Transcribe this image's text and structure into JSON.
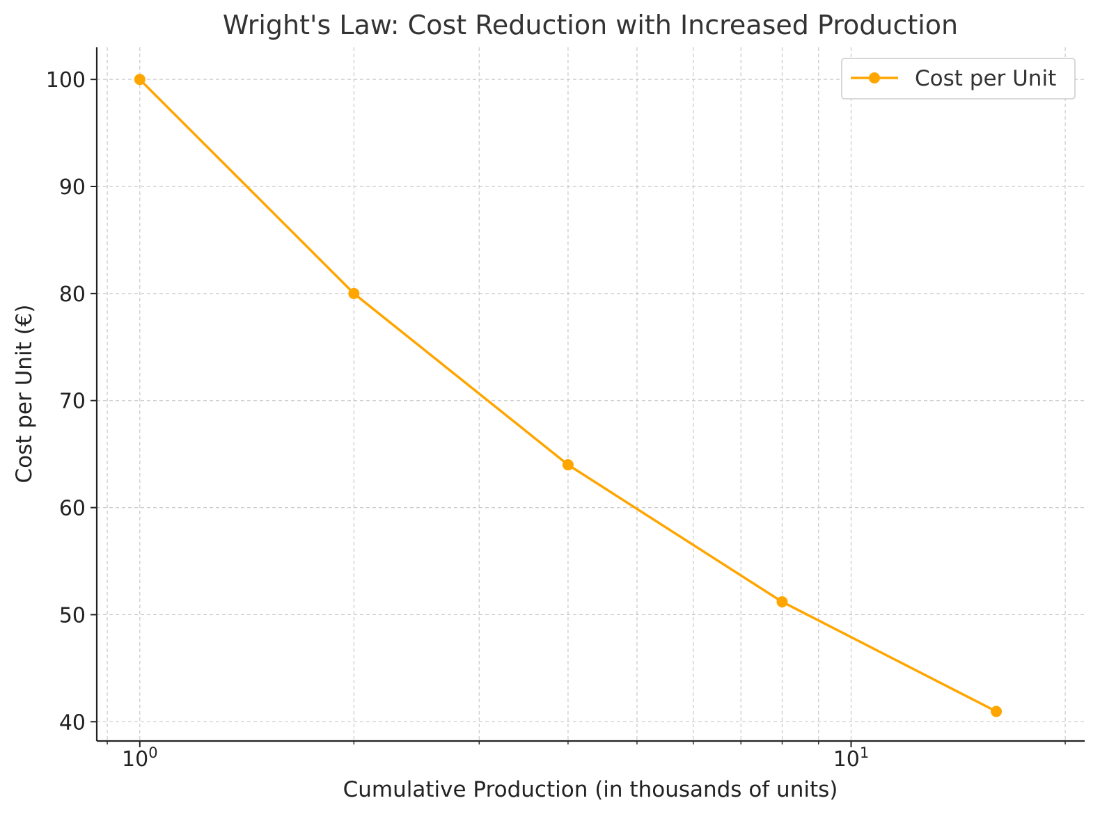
{
  "chart_data": {
    "type": "line",
    "title": "Wright's Law: Cost Reduction with Increased Production",
    "xlabel": "Cumulative Production (in thousands of units)",
    "ylabel": "Cost per Unit (€)",
    "x_scale": "log",
    "xlim": [
      0.87,
      21.3
    ],
    "ylim": [
      38.2,
      103
    ],
    "x_ticks": [
      {
        "value": 1,
        "base": "10",
        "exp": "0"
      },
      {
        "value": 10,
        "base": "10",
        "exp": "1"
      }
    ],
    "y_ticks": [
      40,
      50,
      60,
      70,
      80,
      90,
      100
    ],
    "grid": true,
    "legend_position": "top-right",
    "series": [
      {
        "name": "Cost per Unit",
        "color": "#FFA500",
        "marker": "circle",
        "x": [
          1,
          2,
          4,
          8,
          16
        ],
        "y": [
          100,
          80,
          64,
          51.2,
          40.96
        ]
      }
    ]
  }
}
